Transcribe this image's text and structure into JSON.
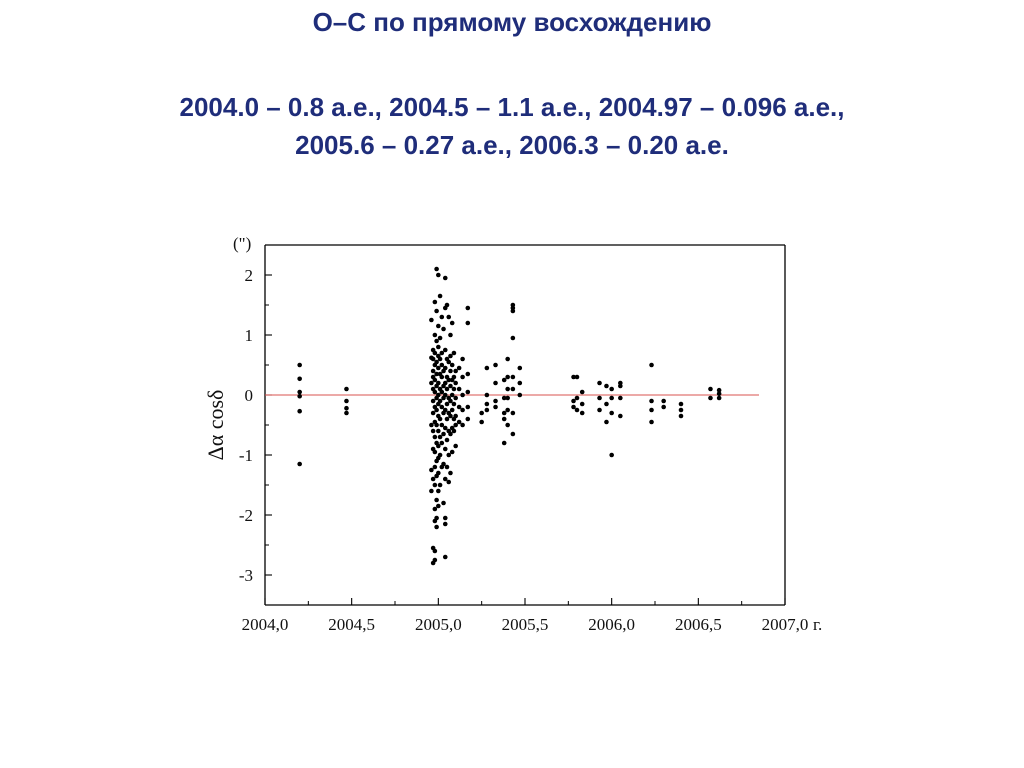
{
  "slide": {
    "title": "O–C по прямому восхождению",
    "subtitle_lines": [
      "2004.0 – 0.8 а.е., 2004.5 – 1.1 а.е., 2004.97 – 0.096 а.е.,",
      "2005.6 – 0.27 а.е., 2006.3 – 0.20 а.е."
    ]
  },
  "colors": {
    "title": "#1f2d7a",
    "points": "#000000",
    "zero_line": "#d9534f"
  },
  "chart_data": {
    "type": "scatter",
    "title": "",
    "xlabel": "г.",
    "ylabel": "Δα cosδ",
    "yunit": "(\")",
    "xlim": [
      2004.0,
      2007.0
    ],
    "ylim": [
      -3.5,
      2.5
    ],
    "xticks": [
      2004.0,
      2004.5,
      2005.0,
      2005.5,
      2006.0,
      2006.5,
      2007.0
    ],
    "xtick_labels": [
      "2004,0",
      "2004,5",
      "2005,0",
      "2005,5",
      "2006,0",
      "2006,5",
      "2007,0"
    ],
    "yticks": [
      2,
      1,
      0,
      -1,
      -2,
      -3
    ],
    "ytick_labels": [
      "2",
      "1",
      "0",
      "-1",
      "-2",
      "-3"
    ],
    "grid": false,
    "reference_line": {
      "y": 0,
      "x_from": 2004.0,
      "x_to": 2006.85,
      "color": "#d9534f"
    },
    "series": [
      {
        "points": [
          [
            2004.2,
            0.5
          ],
          [
            2004.2,
            0.27
          ],
          [
            2004.2,
            0.05
          ],
          [
            2004.2,
            -0.02
          ],
          [
            2004.2,
            -0.27
          ],
          [
            2004.2,
            -1.15
          ],
          [
            2004.47,
            0.1
          ],
          [
            2004.47,
            -0.1
          ],
          [
            2004.47,
            -0.22
          ],
          [
            2004.47,
            -0.3
          ],
          [
            2004.96,
            1.25
          ],
          [
            2004.96,
            0.62
          ],
          [
            2004.96,
            0.2
          ],
          [
            2004.96,
            -0.5
          ],
          [
            2004.96,
            -1.25
          ],
          [
            2004.96,
            -1.6
          ],
          [
            2004.97,
            0.75
          ],
          [
            2004.97,
            0.6
          ],
          [
            2004.97,
            0.4
          ],
          [
            2004.97,
            0.3
          ],
          [
            2004.97,
            0.1
          ],
          [
            2004.97,
            -0.1
          ],
          [
            2004.97,
            -0.3
          ],
          [
            2004.97,
            -0.6
          ],
          [
            2004.97,
            -0.9
          ],
          [
            2004.97,
            -1.4
          ],
          [
            2004.97,
            -2.55
          ],
          [
            2004.97,
            -2.8
          ],
          [
            2004.98,
            1.55
          ],
          [
            2004.98,
            1.0
          ],
          [
            2004.98,
            0.7
          ],
          [
            2004.98,
            0.5
          ],
          [
            2004.98,
            0.25
          ],
          [
            2004.98,
            0.05
          ],
          [
            2004.98,
            -0.2
          ],
          [
            2004.98,
            -0.45
          ],
          [
            2004.98,
            -0.7
          ],
          [
            2004.98,
            -0.95
          ],
          [
            2004.98,
            -1.2
          ],
          [
            2004.98,
            -1.5
          ],
          [
            2004.98,
            -1.9
          ],
          [
            2004.98,
            -2.1
          ],
          [
            2004.98,
            -2.6
          ],
          [
            2004.98,
            -2.75
          ],
          [
            2004.99,
            2.1
          ],
          [
            2004.99,
            1.4
          ],
          [
            2004.99,
            0.9
          ],
          [
            2004.99,
            0.55
          ],
          [
            2004.99,
            0.35
          ],
          [
            2004.99,
            0.15
          ],
          [
            2004.99,
            -0.05
          ],
          [
            2004.99,
            -0.25
          ],
          [
            2004.99,
            -0.5
          ],
          [
            2004.99,
            -0.8
          ],
          [
            2004.99,
            -1.1
          ],
          [
            2004.99,
            -1.35
          ],
          [
            2004.99,
            -1.75
          ],
          [
            2004.99,
            -2.05
          ],
          [
            2004.99,
            -2.2
          ],
          [
            2005.0,
            2.0
          ],
          [
            2005.0,
            1.15
          ],
          [
            2005.0,
            0.8
          ],
          [
            2005.0,
            0.65
          ],
          [
            2005.0,
            0.45
          ],
          [
            2005.0,
            0.2
          ],
          [
            2005.0,
            0.0
          ],
          [
            2005.0,
            -0.15
          ],
          [
            2005.0,
            -0.35
          ],
          [
            2005.0,
            -0.6
          ],
          [
            2005.0,
            -0.85
          ],
          [
            2005.0,
            -1.05
          ],
          [
            2005.0,
            -1.3
          ],
          [
            2005.0,
            -1.6
          ],
          [
            2005.0,
            -1.85
          ],
          [
            2005.01,
            1.65
          ],
          [
            2005.01,
            0.95
          ],
          [
            2005.01,
            0.6
          ],
          [
            2005.01,
            0.35
          ],
          [
            2005.01,
            0.1
          ],
          [
            2005.01,
            -0.1
          ],
          [
            2005.01,
            -0.4
          ],
          [
            2005.01,
            -0.7
          ],
          [
            2005.01,
            -1.0
          ],
          [
            2005.01,
            -1.5
          ],
          [
            2005.02,
            1.3
          ],
          [
            2005.02,
            0.7
          ],
          [
            2005.02,
            0.5
          ],
          [
            2005.02,
            0.3
          ],
          [
            2005.02,
            0.05
          ],
          [
            2005.02,
            -0.2
          ],
          [
            2005.02,
            -0.5
          ],
          [
            2005.02,
            -0.8
          ],
          [
            2005.02,
            -1.2
          ],
          [
            2005.03,
            1.1
          ],
          [
            2005.03,
            0.4
          ],
          [
            2005.03,
            0.15
          ],
          [
            2005.03,
            -0.05
          ],
          [
            2005.03,
            -0.3
          ],
          [
            2005.03,
            -0.65
          ],
          [
            2005.03,
            -1.15
          ],
          [
            2005.03,
            -1.8
          ],
          [
            2005.04,
            1.95
          ],
          [
            2005.04,
            1.45
          ],
          [
            2005.04,
            0.75
          ],
          [
            2005.04,
            0.45
          ],
          [
            2005.04,
            0.2
          ],
          [
            2005.04,
            0.0
          ],
          [
            2005.04,
            -0.25
          ],
          [
            2005.04,
            -0.55
          ],
          [
            2005.04,
            -0.9
          ],
          [
            2005.04,
            -1.4
          ],
          [
            2005.04,
            -2.05
          ],
          [
            2005.04,
            -2.15
          ],
          [
            2005.04,
            -2.7
          ],
          [
            2005.05,
            1.5
          ],
          [
            2005.05,
            0.6
          ],
          [
            2005.05,
            0.3
          ],
          [
            2005.05,
            0.1
          ],
          [
            2005.05,
            -0.15
          ],
          [
            2005.05,
            -0.4
          ],
          [
            2005.05,
            -0.75
          ],
          [
            2005.05,
            -1.2
          ],
          [
            2005.06,
            1.3
          ],
          [
            2005.06,
            0.55
          ],
          [
            2005.06,
            0.25
          ],
          [
            2005.06,
            -0.05
          ],
          [
            2005.06,
            -0.3
          ],
          [
            2005.06,
            -0.6
          ],
          [
            2005.06,
            -1.0
          ],
          [
            2005.06,
            -1.45
          ],
          [
            2005.07,
            1.0
          ],
          [
            2005.07,
            0.65
          ],
          [
            2005.07,
            0.4
          ],
          [
            2005.07,
            0.15
          ],
          [
            2005.07,
            -0.1
          ],
          [
            2005.07,
            -0.35
          ],
          [
            2005.07,
            -0.65
          ],
          [
            2005.07,
            -1.3
          ],
          [
            2005.08,
            1.2
          ],
          [
            2005.08,
            0.5
          ],
          [
            2005.08,
            0.25
          ],
          [
            2005.08,
            0.0
          ],
          [
            2005.08,
            -0.25
          ],
          [
            2005.08,
            -0.55
          ],
          [
            2005.08,
            -0.95
          ],
          [
            2005.09,
            0.7
          ],
          [
            2005.09,
            0.3
          ],
          [
            2005.09,
            0.1
          ],
          [
            2005.09,
            -0.15
          ],
          [
            2005.09,
            -0.4
          ],
          [
            2005.09,
            -0.6
          ],
          [
            2005.1,
            0.4
          ],
          [
            2005.1,
            0.2
          ],
          [
            2005.1,
            -0.05
          ],
          [
            2005.1,
            -0.35
          ],
          [
            2005.1,
            -0.5
          ],
          [
            2005.1,
            -0.85
          ],
          [
            2005.12,
            0.45
          ],
          [
            2005.12,
            0.1
          ],
          [
            2005.12,
            -0.2
          ],
          [
            2005.12,
            -0.45
          ],
          [
            2005.14,
            0.6
          ],
          [
            2005.14,
            0.3
          ],
          [
            2005.14,
            0.0
          ],
          [
            2005.14,
            -0.25
          ],
          [
            2005.14,
            -0.5
          ],
          [
            2005.17,
            1.45
          ],
          [
            2005.17,
            1.2
          ],
          [
            2005.17,
            0.35
          ],
          [
            2005.17,
            0.05
          ],
          [
            2005.17,
            -0.2
          ],
          [
            2005.17,
            -0.4
          ],
          [
            2005.25,
            -0.3
          ],
          [
            2005.25,
            -0.45
          ],
          [
            2005.28,
            0.45
          ],
          [
            2005.28,
            0.0
          ],
          [
            2005.28,
            -0.15
          ],
          [
            2005.28,
            -0.25
          ],
          [
            2005.33,
            0.5
          ],
          [
            2005.33,
            0.2
          ],
          [
            2005.33,
            -0.1
          ],
          [
            2005.33,
            -0.2
          ],
          [
            2005.38,
            0.25
          ],
          [
            2005.38,
            -0.05
          ],
          [
            2005.38,
            -0.3
          ],
          [
            2005.38,
            -0.4
          ],
          [
            2005.38,
            -0.8
          ],
          [
            2005.4,
            0.6
          ],
          [
            2005.4,
            0.3
          ],
          [
            2005.4,
            0.1
          ],
          [
            2005.4,
            -0.05
          ],
          [
            2005.4,
            -0.25
          ],
          [
            2005.4,
            -0.5
          ],
          [
            2005.43,
            1.5
          ],
          [
            2005.43,
            1.45
          ],
          [
            2005.43,
            1.4
          ],
          [
            2005.43,
            0.95
          ],
          [
            2005.43,
            0.3
          ],
          [
            2005.43,
            0.1
          ],
          [
            2005.43,
            -0.3
          ],
          [
            2005.43,
            -0.65
          ],
          [
            2005.47,
            0.45
          ],
          [
            2005.47,
            0.2
          ],
          [
            2005.47,
            0.0
          ],
          [
            2005.78,
            0.3
          ],
          [
            2005.78,
            -0.1
          ],
          [
            2005.78,
            -0.2
          ],
          [
            2005.8,
            0.3
          ],
          [
            2005.8,
            -0.05
          ],
          [
            2005.8,
            -0.25
          ],
          [
            2005.83,
            0.05
          ],
          [
            2005.83,
            -0.15
          ],
          [
            2005.83,
            -0.3
          ],
          [
            2005.93,
            0.2
          ],
          [
            2005.93,
            -0.05
          ],
          [
            2005.93,
            -0.25
          ],
          [
            2005.97,
            0.15
          ],
          [
            2005.97,
            -0.15
          ],
          [
            2005.97,
            -0.45
          ],
          [
            2006.0,
            0.1
          ],
          [
            2006.0,
            -0.05
          ],
          [
            2006.0,
            -0.3
          ],
          [
            2006.0,
            -1.0
          ],
          [
            2006.05,
            0.2
          ],
          [
            2006.05,
            0.15
          ],
          [
            2006.05,
            -0.05
          ],
          [
            2006.05,
            -0.35
          ],
          [
            2006.23,
            0.5
          ],
          [
            2006.23,
            -0.1
          ],
          [
            2006.23,
            -0.25
          ],
          [
            2006.23,
            -0.45
          ],
          [
            2006.3,
            -0.1
          ],
          [
            2006.3,
            -0.2
          ],
          [
            2006.4,
            -0.15
          ],
          [
            2006.4,
            -0.25
          ],
          [
            2006.4,
            -0.35
          ],
          [
            2006.57,
            0.1
          ],
          [
            2006.57,
            -0.05
          ],
          [
            2006.62,
            0.08
          ],
          [
            2006.62,
            0.02
          ],
          [
            2006.62,
            -0.05
          ]
        ]
      }
    ]
  }
}
